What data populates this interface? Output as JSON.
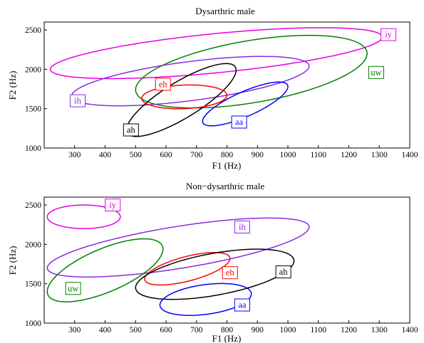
{
  "chart_data": [
    {
      "type": "scatter",
      "title": "Dysarthric male",
      "xlabel": "F1 (Hz)",
      "ylabel": "F2 (Hz)",
      "xlim": [
        200,
        1400
      ],
      "ylim": [
        1000,
        2600
      ],
      "xticks": [
        300,
        400,
        500,
        600,
        700,
        800,
        900,
        1000,
        1100,
        1200,
        1300,
        1400
      ],
      "yticks": [
        1000,
        1500,
        2000,
        2500
      ],
      "grid": false,
      "series": [
        {
          "name": "iy",
          "color": "#e600e6",
          "ellipse": {
            "center": [
              765,
              2205
            ],
            "points": [
              [
                220,
                2000
              ],
              [
                1310,
                2410
              ],
              [
                765,
                2455
              ],
              [
                765,
                1955
              ]
            ]
          },
          "label_at": [
            1330,
            2440
          ]
        },
        {
          "name": "uw",
          "color": "#008000",
          "ellipse": {
            "center": [
              880,
              1970
            ],
            "points": [
              [
                500,
                1740
              ],
              [
                1260,
                2200
              ],
              [
                880,
                2370
              ],
              [
                880,
                1570
              ]
            ]
          },
          "label_at": [
            1290,
            1960
          ]
        },
        {
          "name": "ih",
          "color": "#8a2be2",
          "ellipse": {
            "center": [
              680,
              1850
            ],
            "points": [
              [
                290,
                1660
              ],
              [
                1070,
                2040
              ],
              [
                680,
                2100
              ],
              [
                680,
                1600
              ]
            ]
          },
          "label_at": [
            310,
            1600
          ]
        },
        {
          "name": "ah",
          "color": "#000000",
          "ellipse": {
            "center": [
              650,
              1610
            ],
            "points": [
              [
                480,
                1220
              ],
              [
                830,
                1990
              ],
              [
                650,
                1875
              ],
              [
                650,
                1345
              ]
            ]
          },
          "label_at": [
            485,
            1230
          ]
        },
        {
          "name": "eh",
          "color": "#ff0000",
          "ellipse": {
            "center": [
              660,
              1650
            ],
            "points": [
              [
                520,
                1630
              ],
              [
                800,
                1670
              ],
              [
                660,
                1800
              ],
              [
                660,
                1500
              ]
            ]
          },
          "label_at": [
            590,
            1810
          ]
        },
        {
          "name": "aa",
          "color": "#0000ff",
          "ellipse": {
            "center": [
              860,
              1560
            ],
            "points": [
              [
                720,
                1340
              ],
              [
                1000,
                1780
              ],
              [
                860,
                1730
              ],
              [
                860,
                1390
              ]
            ]
          },
          "label_at": [
            840,
            1330
          ]
        }
      ]
    },
    {
      "type": "scatter",
      "title": "Non−dysarthric male",
      "xlabel": "F1 (Hz)",
      "ylabel": "F2 (Hz)",
      "xlim": [
        200,
        1400
      ],
      "ylim": [
        1000,
        2600
      ],
      "xticks": [
        300,
        400,
        500,
        600,
        700,
        800,
        900,
        1000,
        1100,
        1200,
        1300,
        1400
      ],
      "yticks": [
        1000,
        1500,
        2000,
        2500
      ],
      "grid": false,
      "series": [
        {
          "name": "iy",
          "color": "#e600e6",
          "ellipse": {
            "center": [
              330,
              2350
            ],
            "points": [
              [
                210,
                2350
              ],
              [
                450,
                2350
              ],
              [
                330,
                2500
              ],
              [
                330,
                2200
              ]
            ]
          },
          "label_at": [
            425,
            2500
          ]
        },
        {
          "name": "ih",
          "color": "#8a2be2",
          "ellipse": {
            "center": [
              640,
              1960
            ],
            "points": [
              [
                210,
                1700
              ],
              [
                1070,
                2220
              ],
              [
                640,
                2230
              ],
              [
                640,
                1690
              ]
            ]
          },
          "label_at": [
            850,
            2220
          ]
        },
        {
          "name": "uw",
          "color": "#008000",
          "ellipse": {
            "center": [
              400,
              1670
            ],
            "points": [
              [
                210,
                1400
              ],
              [
                590,
                1940
              ],
              [
                400,
                1965
              ],
              [
                400,
                1375
              ]
            ]
          },
          "label_at": [
            295,
            1440
          ]
        },
        {
          "name": "eh",
          "color": "#ff0000",
          "ellipse": {
            "center": [
              670,
              1690
            ],
            "points": [
              [
                530,
                1560
              ],
              [
                810,
                1820
              ],
              [
                670,
                1850
              ],
              [
                670,
                1530
              ]
            ]
          },
          "label_at": [
            810,
            1640
          ]
        },
        {
          "name": "ah",
          "color": "#000000",
          "ellipse": {
            "center": [
              760,
              1620
            ],
            "points": [
              [
                500,
                1450
              ],
              [
                1020,
                1790
              ],
              [
                760,
                1890
              ],
              [
                760,
                1350
              ]
            ]
          },
          "label_at": [
            985,
            1650
          ]
        },
        {
          "name": "aa",
          "color": "#0000ff",
          "ellipse": {
            "center": [
              730,
              1300
            ],
            "points": [
              [
                580,
                1230
              ],
              [
                880,
                1370
              ],
              [
                730,
                1490
              ],
              [
                730,
                1110
              ]
            ]
          },
          "label_at": [
            850,
            1230
          ]
        }
      ]
    }
  ]
}
